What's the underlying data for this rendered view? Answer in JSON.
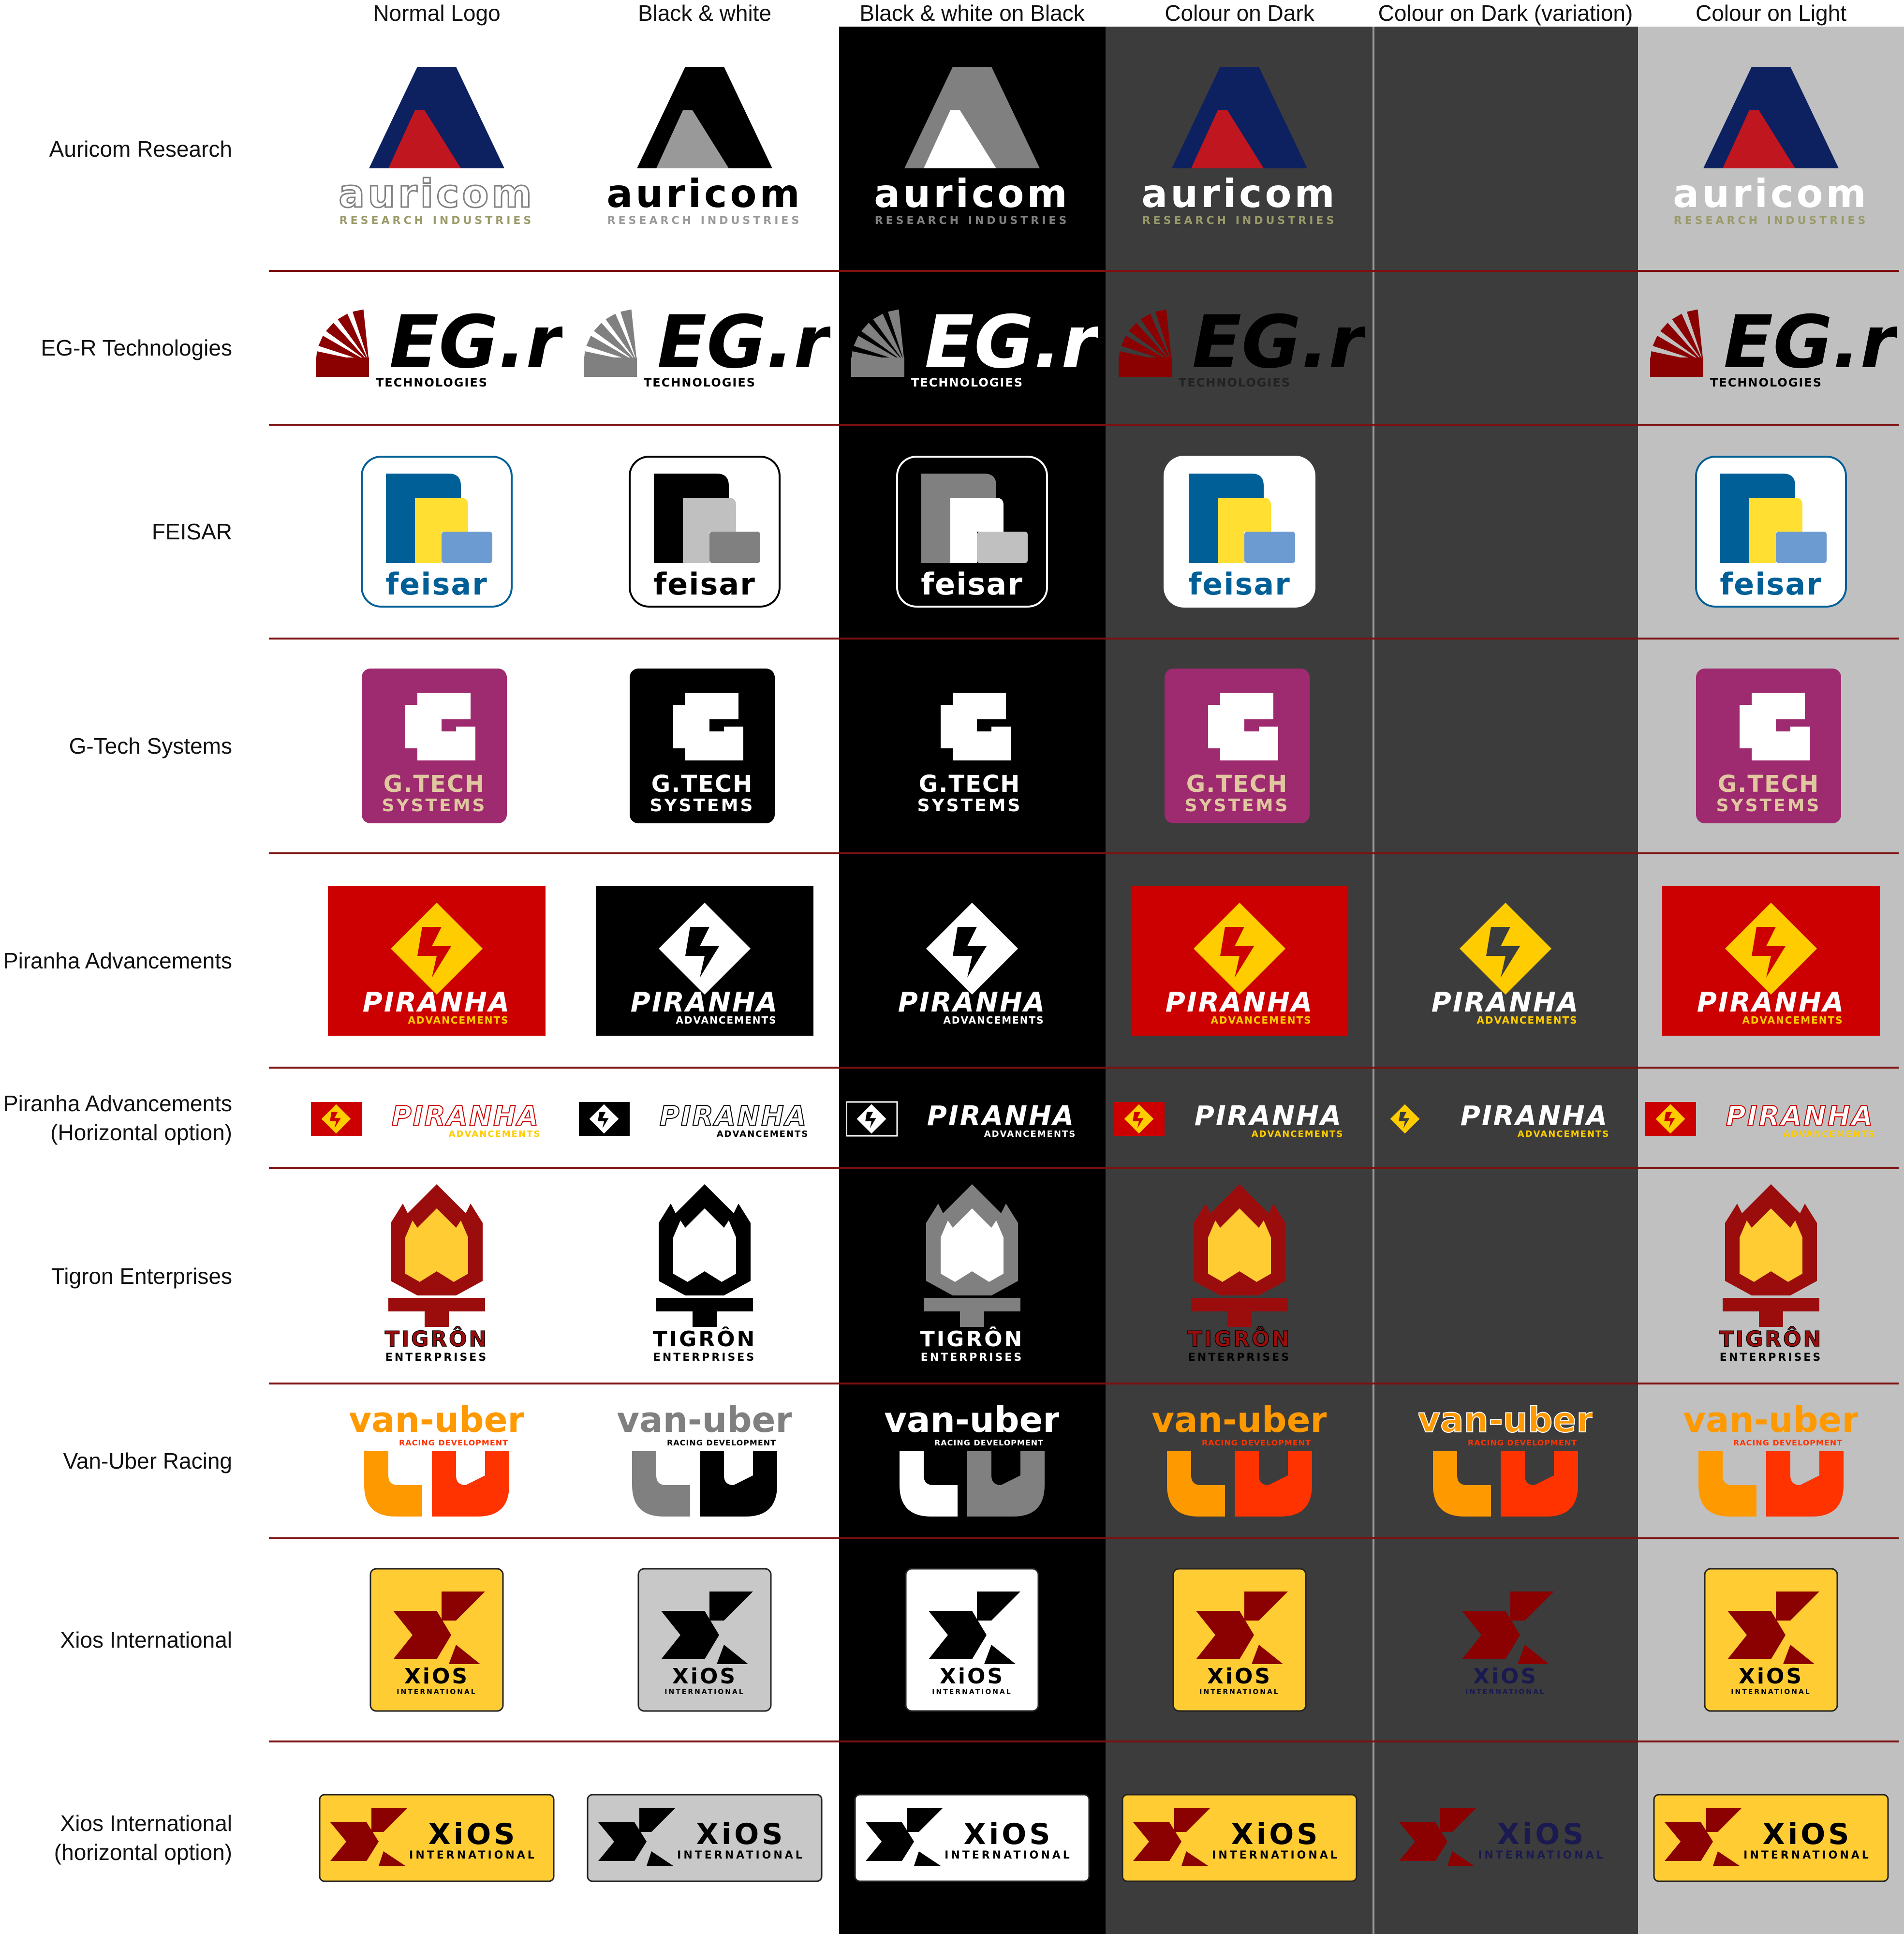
{
  "columns": [
    {
      "label": "Normal Logo",
      "bg": "#ffffff",
      "text": "#111111"
    },
    {
      "label": "Black & white",
      "bg": "#ffffff",
      "text": "#111111"
    },
    {
      "label": "Black & white on Black",
      "bg": "#000000",
      "text": "#111111"
    },
    {
      "label": "Colour on Dark",
      "bg": "#3c3c3c",
      "text": "#111111"
    },
    {
      "label": "Colour on Dark (variation)",
      "bg": "#3c3c3c",
      "text": "#111111"
    },
    {
      "label": "Colour on Light",
      "bg": "#c0c0c0",
      "text": "#111111"
    }
  ],
  "rows": [
    {
      "label": [
        "Auricom Research"
      ],
      "logo": "auricom",
      "wordmark": "auricom",
      "subtitle": "RESEARCH INDUSTRIES",
      "variation": false
    },
    {
      "label": [
        "EG-R Technologies"
      ],
      "logo": "egr",
      "wordmark": "EG.r",
      "subtitle": "TECHNOLOGIES",
      "variation": false
    },
    {
      "label": [
        "FEISAR"
      ],
      "logo": "feisar",
      "wordmark": "feisar",
      "subtitle": "",
      "variation": false
    },
    {
      "label": [
        "G-Tech Systems"
      ],
      "logo": "gtech",
      "wordmark": "G.TECH",
      "subtitle": "SYSTEMS",
      "variation": false
    },
    {
      "label": [
        "Piranha Advancements"
      ],
      "logo": "piranha",
      "wordmark": "PIRANHA",
      "subtitle": "ADVANCEMENTS",
      "variation": true
    },
    {
      "label": [
        "Piranha Advancements",
        "(Horizontal option)"
      ],
      "logo": "piranha-h",
      "wordmark": "PIRANHA",
      "subtitle": "ADVANCEMENTS",
      "variation": true
    },
    {
      "label": [
        "Tigron Enterprises"
      ],
      "logo": "tigron",
      "wordmark": "TIGRÔN",
      "subtitle": "ENTERPRISES",
      "variation": false
    },
    {
      "label": [
        "Van-Uber Racing"
      ],
      "logo": "vanuber",
      "wordmark": "van-uber",
      "subtitle": "RACING DEVELOPMENT",
      "variation": true
    },
    {
      "label": [
        "Xios International"
      ],
      "logo": "xios",
      "wordmark": "XiOS",
      "subtitle": "INTERNATIONAL",
      "variation": true
    },
    {
      "label": [
        "Xios International",
        "(horizontal option)"
      ],
      "logo": "xios-h",
      "wordmark": "XiOS",
      "subtitle": "INTERNATIONAL",
      "variation": true
    }
  ],
  "colors": {
    "divider": "#7d1010",
    "auricom_navy": "#0d2060",
    "auricom_red": "#c0161f",
    "auricom_sub": "#9a9a6a",
    "egr_red": "#8b0000",
    "feisar_blue": "#005f96",
    "feisar_yellow": "#ffe032",
    "feisar_light": "#6c9bd1",
    "gtech_purple": "#9e2a6f",
    "gtech_tan": "#e0c7a0",
    "piranha_red": "#cc0000",
    "piranha_yellow": "#ffcc00",
    "tigron_red": "#9b0d0d",
    "tigron_yellow": "#ffcc33",
    "vanuber_orange": "#ff9900",
    "vanuber_red": "#ff3300",
    "xios_yellow": "#ffcc33",
    "xios_red": "#8b0000",
    "xios_navy": "#1a1a50"
  }
}
